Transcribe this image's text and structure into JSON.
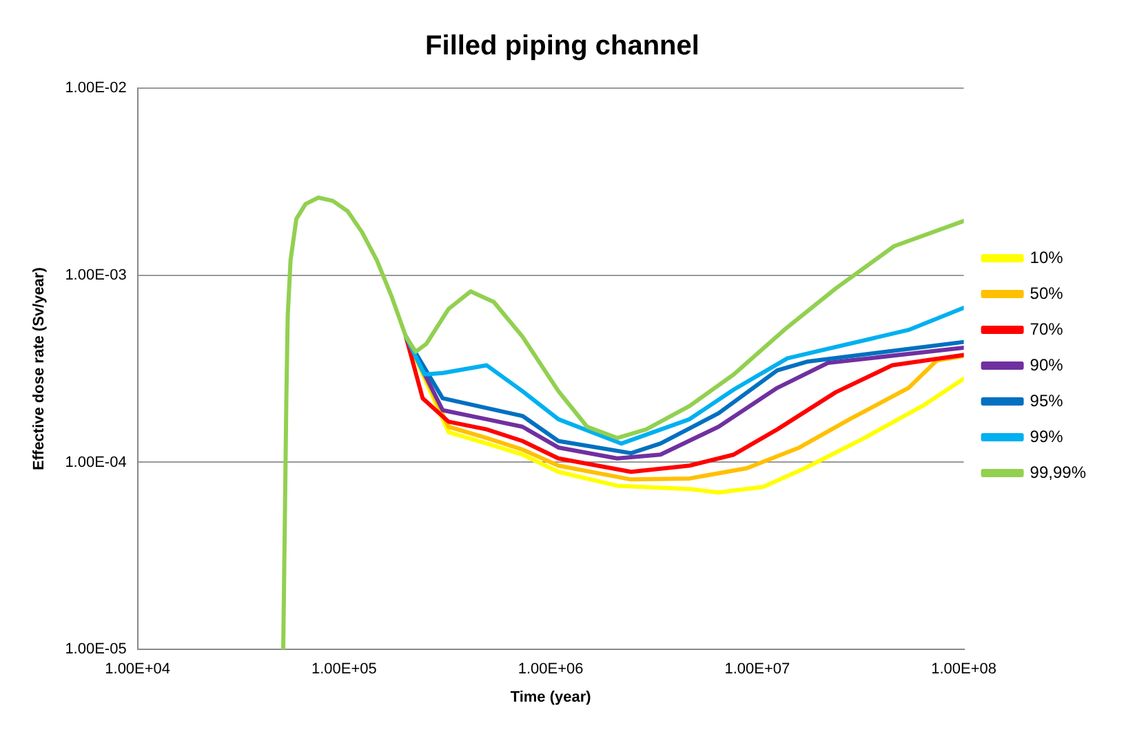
{
  "chart_data": {
    "type": "line",
    "title": "Filled piping channel",
    "xlabel": "Time (year)",
    "ylabel": "Effective dose rate (Sv/year)",
    "log": "xy",
    "grid": "y",
    "legend": "right",
    "marker": "none",
    "line_style": "solid",
    "xlim": [
      10000,
      100000000
    ],
    "ylim": [
      1e-05,
      0.01
    ],
    "xticks": [
      {
        "value": 10000,
        "label": "1.00E+04"
      },
      {
        "value": 100000,
        "label": "1.00E+05"
      },
      {
        "value": 1000000,
        "label": "1.00E+06"
      },
      {
        "value": 10000000,
        "label": "1.00E+07"
      },
      {
        "value": 100000000,
        "label": "1.00E+08"
      }
    ],
    "yticks": [
      {
        "value": 1e-05,
        "label": "1.00E-05"
      },
      {
        "value": 0.0001,
        "label": "1.00E-04"
      },
      {
        "value": 0.001,
        "label": "1.00E-03"
      },
      {
        "value": 0.01,
        "label": "1.00E-02"
      }
    ],
    "series": [
      {
        "name": "10%",
        "color": "#ffff00",
        "x": [
          199000,
          320000,
          490000,
          730000,
          1090000,
          2100000,
          4700000,
          6500000,
          10700000,
          17000000,
          33000000,
          63000000,
          100000000
        ],
        "values": [
          0.00047,
          0.000145,
          0.000126,
          0.00011,
          8.9e-05,
          7.5e-05,
          7.2e-05,
          6.9e-05,
          7.4e-05,
          9.3e-05,
          0.000135,
          0.0002,
          0.00028
        ]
      },
      {
        "name": "50%",
        "color": "#ffc000",
        "x": [
          199000,
          320000,
          490000,
          730000,
          1090000,
          2450000,
          4700000,
          8900000,
          16000000,
          28000000,
          54000000,
          74000000,
          100000000
        ],
        "values": [
          0.00047,
          0.000155,
          0.000135,
          0.000117,
          9.6e-05,
          8.1e-05,
          8.2e-05,
          9.3e-05,
          0.00012,
          0.00017,
          0.00025,
          0.00035,
          0.00037
        ]
      },
      {
        "name": "70%",
        "color": "#ff0000",
        "x": [
          199000,
          240000,
          320000,
          490000,
          730000,
          1090000,
          2450000,
          4700000,
          7700000,
          12500000,
          24000000,
          45000000,
          100000000
        ],
        "values": [
          0.00047,
          0.00022,
          0.000165,
          0.00015,
          0.00013,
          0.000105,
          8.9e-05,
          9.6e-05,
          0.00011,
          0.00015,
          0.000237,
          0.00033,
          0.000375
        ]
      },
      {
        "name": "90%",
        "color": "#7030a0",
        "x": [
          199000,
          300000,
          490000,
          730000,
          1090000,
          2100000,
          3400000,
          6500000,
          12500000,
          22000000,
          100000000
        ],
        "values": [
          0.00047,
          0.00019,
          0.00017,
          0.000155,
          0.00012,
          0.000105,
          0.00011,
          0.000155,
          0.00025,
          0.00034,
          0.00041
        ]
      },
      {
        "name": "95%",
        "color": "#0070c0",
        "x": [
          199000,
          300000,
          490000,
          730000,
          1090000,
          2450000,
          3400000,
          6500000,
          12500000,
          17400000,
          100000000
        ],
        "values": [
          0.00047,
          0.00022,
          0.000195,
          0.000177,
          0.00013,
          0.000112,
          0.000126,
          0.000183,
          0.00031,
          0.000345,
          0.00044
        ]
      },
      {
        "name": "99%",
        "color": "#00b0f0",
        "x": [
          199000,
          245000,
          300000,
          490000,
          730000,
          1090000,
          2200000,
          4700000,
          7700000,
          14000000,
          54000000,
          100000000
        ],
        "values": [
          0.00047,
          0.000295,
          0.0003,
          0.00033,
          0.00024,
          0.00017,
          0.000126,
          0.00017,
          0.000245,
          0.00036,
          0.00051,
          0.00067
        ]
      },
      {
        "name": "99,99%",
        "color": "#92d050",
        "x": [
          50700,
          51600,
          52500,
          53300,
          55000,
          58700,
          65000,
          75000,
          88000,
          104000,
          122000,
          144000,
          169000,
          199000,
          222000,
          250000,
          320000,
          410000,
          530000,
          730000,
          1090000,
          1500000,
          2100000,
          2900000,
          4700000,
          7700000,
          13500000,
          24000000,
          46000000,
          100000000
        ],
        "values": [
          1e-05,
          4.7e-05,
          0.00022,
          0.0006,
          0.0012,
          0.002,
          0.0024,
          0.0026,
          0.0025,
          0.0022,
          0.0017,
          0.0012,
          0.00078,
          0.00047,
          0.00039,
          0.00043,
          0.00066,
          0.00082,
          0.00072,
          0.00047,
          0.00024,
          0.000155,
          0.000135,
          0.00015,
          0.0002,
          0.000295,
          0.00051,
          0.00085,
          0.00143,
          0.00195
        ]
      }
    ]
  }
}
